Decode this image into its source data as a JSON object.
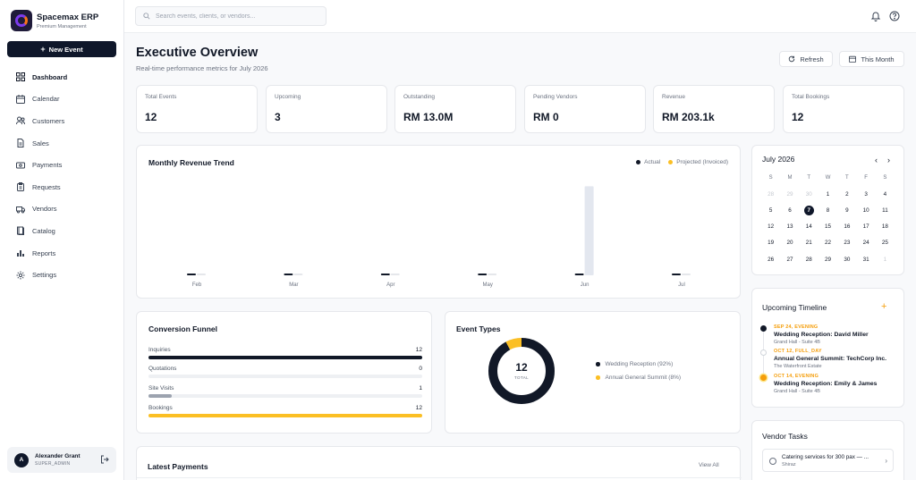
{
  "brand": {
    "title": "Spacemax ERP",
    "subtitle": "Premium Management"
  },
  "sidebar": {
    "new_event_label": "New Event",
    "items": [
      {
        "label": "Dashboard",
        "icon": "grid-icon"
      },
      {
        "label": "Calendar",
        "icon": "calendar-icon"
      },
      {
        "label": "Customers",
        "icon": "users-icon"
      },
      {
        "label": "Sales",
        "icon": "document-icon"
      },
      {
        "label": "Payments",
        "icon": "cash-icon"
      },
      {
        "label": "Requests",
        "icon": "clipboard-icon"
      },
      {
        "label": "Vendors",
        "icon": "truck-icon"
      },
      {
        "label": "Catalog",
        "icon": "book-icon"
      },
      {
        "label": "Reports",
        "icon": "bar-chart-icon"
      },
      {
        "label": "Settings",
        "icon": "gear-icon"
      }
    ]
  },
  "user": {
    "initial": "A",
    "name": "Alexander Grant",
    "role": "SUPER_ADMIN"
  },
  "search": {
    "placeholder": "Search events, clients, or vendors..."
  },
  "header": {
    "title": "Executive Overview",
    "subtitle": "Real-time performance metrics for July 2026",
    "refresh_label": "Refresh",
    "period_label": "This Month"
  },
  "stats": [
    {
      "label": "Total Events",
      "value": "12"
    },
    {
      "label": "Upcoming",
      "value": "3"
    },
    {
      "label": "Outstanding",
      "value": "RM 13.0M"
    },
    {
      "label": "Pending Vendors",
      "value": "RM 0"
    },
    {
      "label": "Revenue",
      "value": "RM 203.1k"
    },
    {
      "label": "Total Bookings",
      "value": "12"
    }
  ],
  "revenue_chart": {
    "title": "Monthly Revenue Trend",
    "legend": {
      "actual": "Actual",
      "projected": "Projected (Invoiced)"
    },
    "colors": {
      "actual": "#111827",
      "projected": "#e5e7eb"
    }
  },
  "chart_data": {
    "type": "bar",
    "title": "Monthly Revenue Trend",
    "categories": [
      "Feb",
      "Mar",
      "Apr",
      "May",
      "Jun",
      "Jul"
    ],
    "series": [
      {
        "name": "Actual",
        "values": [
          0,
          0,
          0,
          0,
          0,
          0
        ]
      },
      {
        "name": "Projected (Invoiced)",
        "values": [
          0,
          0,
          0,
          0,
          13000000,
          0
        ]
      }
    ],
    "ylim": [
      0,
      15000000
    ],
    "grid": false,
    "legend_position": "top-right"
  },
  "funnel": {
    "title": "Conversion Funnel",
    "max": 12,
    "rows": [
      {
        "label": "Inquiries",
        "value": 12,
        "color": "#111827"
      },
      {
        "label": "Quotations",
        "value": 0,
        "color": "#9ca3af"
      },
      {
        "label": "Site Visits",
        "value": 1,
        "color": "#9ca3af"
      },
      {
        "label": "Bookings",
        "value": 12,
        "color": "#fbbf24"
      }
    ]
  },
  "event_types": {
    "title": "Event Types",
    "total_value": "12",
    "total_label": "TOTAL",
    "items": [
      {
        "label": "Wedding Reception (92%)",
        "color": "#111827",
        "share": 0.92
      },
      {
        "label": "Annual General Summit (8%)",
        "color": "#fbbf24",
        "share": 0.08
      }
    ]
  },
  "calendar": {
    "month": "July 2026",
    "prev": "‹",
    "next": "›",
    "dow": [
      "S",
      "M",
      "T",
      "W",
      "T",
      "F",
      "S"
    ],
    "days": [
      [
        "28",
        "29",
        "30",
        "1",
        "2",
        "3",
        "4"
      ],
      [
        "5",
        "6",
        "7",
        "8",
        "9",
        "10",
        "11"
      ],
      [
        "12",
        "13",
        "14",
        "15",
        "16",
        "17",
        "18"
      ],
      [
        "19",
        "20",
        "21",
        "22",
        "23",
        "24",
        "25"
      ],
      [
        "26",
        "27",
        "28",
        "29",
        "30",
        "31",
        "1"
      ]
    ],
    "today": "7"
  },
  "timeline": {
    "title": "Upcoming Timeline",
    "add": "+",
    "items": [
      {
        "date": "SEP 24, EVENING",
        "name": "Wedding Reception: David Miller",
        "location": "Grand Hall - Suite 4B",
        "dot": "#111827"
      },
      {
        "date": "OCT 12, FULL_DAY",
        "name": "Annual General Summit: TechCorp Inc.",
        "location": "The Waterfront Estate",
        "dot": "#d1d5db"
      },
      {
        "date": "OCT 14, EVENING",
        "name": "Wedding Reception: Emily & James",
        "location": "Grand Hall - Suite 4B",
        "dot": "#f59e0b"
      }
    ]
  },
  "vendor_tasks": {
    "title": "Vendor Tasks",
    "items": [
      {
        "title": "Catering services for 300 pax — ...",
        "subtitle": "Shiraz",
        "arrow": "›"
      }
    ]
  },
  "payments": {
    "title": "Latest Payments",
    "view_all": "View All"
  }
}
